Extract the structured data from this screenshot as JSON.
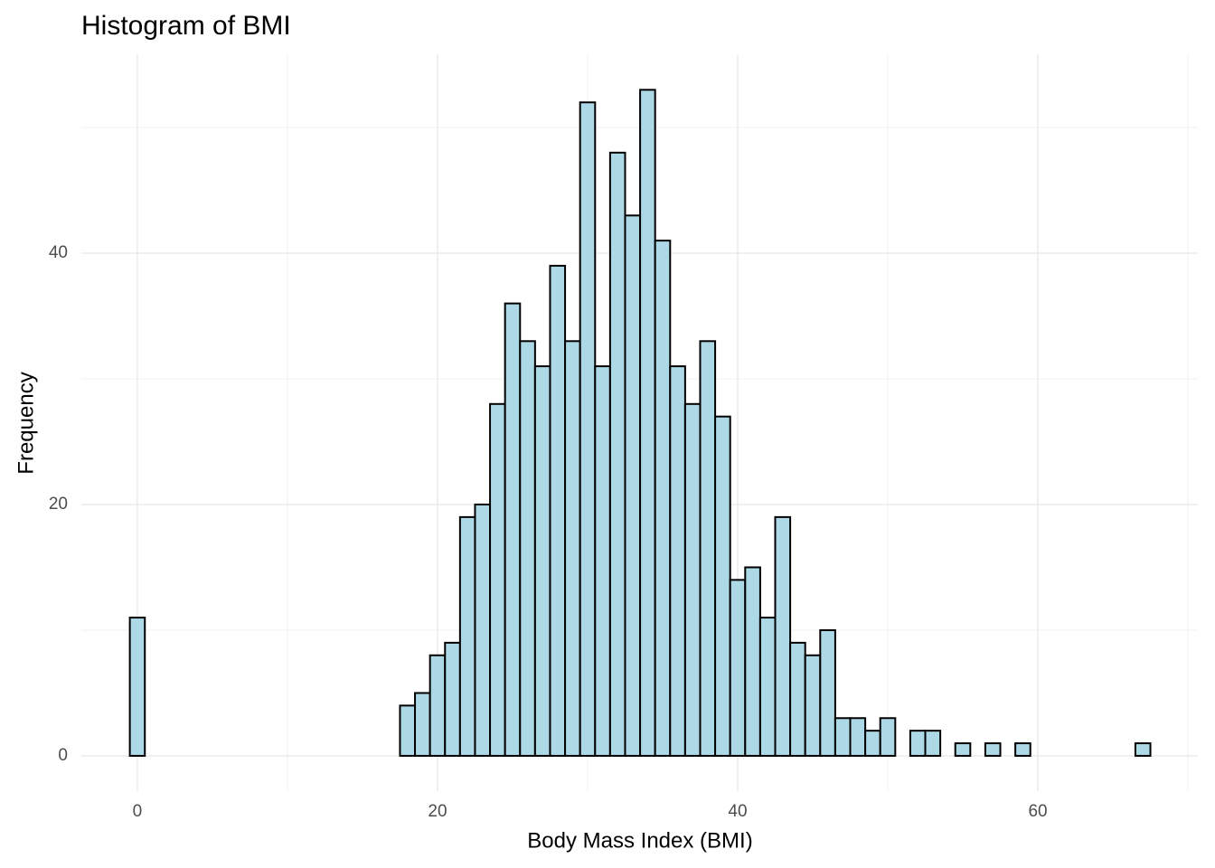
{
  "chart_data": {
    "type": "histogram",
    "title": "Histogram of BMI",
    "x_label": "Body Mass Index (BMI)",
    "y_label": "Frequency",
    "bins": [
      -0.5,
      0.5,
      1.5,
      2.5,
      3.5,
      4.5,
      5.5,
      6.5,
      7.5,
      8.5,
      9.5,
      10.5,
      11.5,
      12.5,
      13.5,
      14.5,
      15.5,
      16.5,
      17.5,
      18.5,
      19.5,
      20.5,
      21.5,
      22.5,
      23.5,
      24.5,
      25.5,
      26.5,
      27.5,
      28.5,
      29.5,
      30.5,
      31.5,
      32.5,
      33.5,
      34.5,
      35.5,
      36.5,
      37.5,
      38.5,
      39.5,
      40.5,
      41.5,
      42.5,
      43.5,
      44.5,
      45.5,
      46.5,
      47.5,
      48.5,
      49.5,
      50.5,
      51.5,
      52.5,
      53.5,
      54.5,
      55.5,
      56.5,
      57.5,
      58.5,
      59.5,
      60.5,
      61.5,
      62.5,
      63.5,
      64.5,
      65.5,
      66.5,
      67.5
    ],
    "values": [
      11,
      0,
      0,
      0,
      0,
      0,
      0,
      0,
      0,
      0,
      0,
      0,
      0,
      0,
      0,
      0,
      0,
      0,
      4,
      5,
      8,
      9,
      19,
      20,
      28,
      36,
      33,
      31,
      39,
      33,
      52,
      31,
      48,
      43,
      53,
      41,
      31,
      28,
      33,
      27,
      14,
      15,
      11,
      19,
      9,
      8,
      10,
      3,
      3,
      2,
      3,
      0,
      2,
      2,
      0,
      1,
      0,
      1,
      0,
      1,
      0,
      0,
      0,
      0,
      0,
      0,
      0,
      1
    ],
    "color": "#add8e6",
    "edge_color": "#000000",
    "xlim": [
      -3.73,
      70.66
    ],
    "ylim": [
      -2.81,
      55.83
    ],
    "xticks": [
      0,
      20,
      40,
      60
    ],
    "yticks": [
      0,
      20,
      40
    ],
    "grid": true,
    "minor_grid": true
  }
}
